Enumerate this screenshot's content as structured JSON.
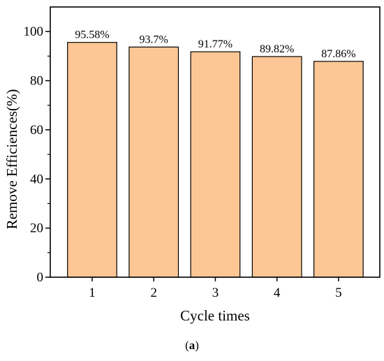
{
  "chart_data": {
    "type": "bar",
    "categories": [
      "1",
      "2",
      "3",
      "4",
      "5"
    ],
    "values": [
      95.58,
      93.7,
      91.77,
      89.82,
      87.86
    ],
    "data_labels": [
      "95.58%",
      "93.7%",
      "91.77%",
      "89.82%",
      "87.86%"
    ],
    "xlabel": "Cycle times",
    "ylabel": "Remove Efficiences(%)",
    "ylim": [
      0,
      110
    ],
    "yticks": [
      0,
      20,
      40,
      60,
      80,
      100
    ],
    "grid": false,
    "legend": "none",
    "bar_color": "#fdc795",
    "bar_edge_color": "#000000"
  },
  "panel_label": {
    "open": "(",
    "letter": "a",
    "close": ")"
  }
}
